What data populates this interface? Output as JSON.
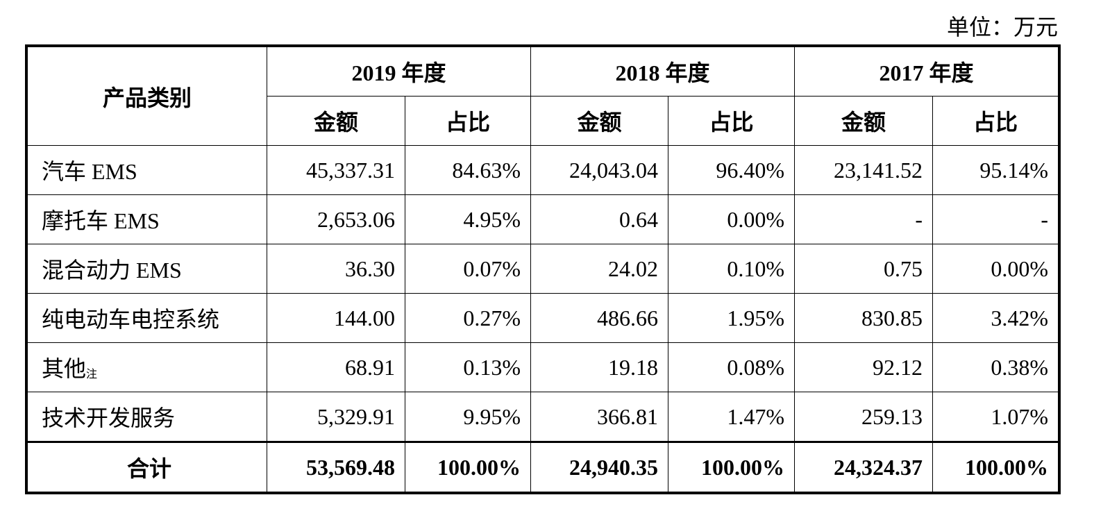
{
  "unit_label": "单位：万元",
  "table": {
    "category_header": "产品类别",
    "years": [
      "2019 年度",
      "2018 年度",
      "2017 年度"
    ],
    "sub_headers": [
      "金额",
      "占比"
    ],
    "rows": [
      {
        "label": "汽车 EMS",
        "note": "",
        "values": [
          "45,337.31",
          "84.63%",
          "24,043.04",
          "96.40%",
          "23,141.52",
          "95.14%"
        ]
      },
      {
        "label": "摩托车 EMS",
        "note": "",
        "values": [
          "2,653.06",
          "4.95%",
          "0.64",
          "0.00%",
          "-",
          "-"
        ]
      },
      {
        "label": "混合动力 EMS",
        "note": "",
        "values": [
          "36.30",
          "0.07%",
          "24.02",
          "0.10%",
          "0.75",
          "0.00%"
        ]
      },
      {
        "label": "纯电动车电控系统",
        "note": "",
        "values": [
          "144.00",
          "0.27%",
          "486.66",
          "1.95%",
          "830.85",
          "3.42%"
        ]
      },
      {
        "label": "其他",
        "note": "注",
        "values": [
          "68.91",
          "0.13%",
          "19.18",
          "0.08%",
          "92.12",
          "0.38%"
        ]
      },
      {
        "label": "技术开发服务",
        "note": "",
        "values": [
          "5,329.91",
          "9.95%",
          "366.81",
          "1.47%",
          "259.13",
          "1.07%"
        ]
      }
    ],
    "total": {
      "label": "合计",
      "values": [
        "53,569.48",
        "100.00%",
        "24,940.35",
        "100.00%",
        "24,324.37",
        "100.00%"
      ]
    }
  }
}
